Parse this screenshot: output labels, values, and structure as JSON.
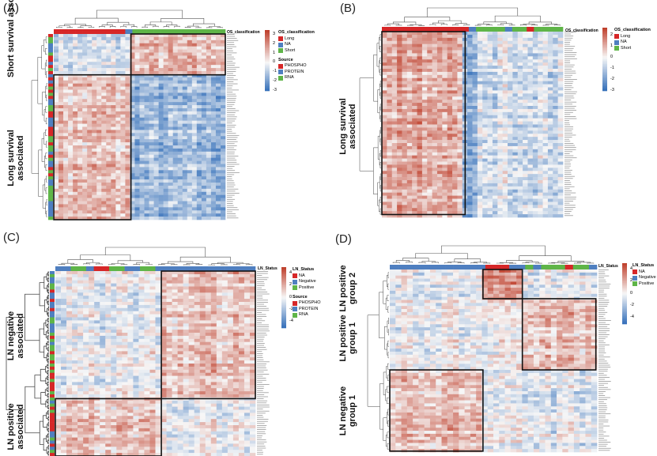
{
  "chart_data": [
    {
      "type": "heatmap",
      "panel_label": "(A)",
      "row_group_labels": [
        "Short survival associated",
        "Long survival associated"
      ],
      "column_annotation_title": "OS_classification",
      "colorbar_range": [
        -3,
        3.5
      ],
      "colorbar_ticks": [
        "3",
        "2",
        "1",
        "0",
        "-1",
        "-2",
        "-3"
      ],
      "legends": [
        {
          "title": "OS_classification",
          "items": [
            {
              "label": "Long",
              "color": "#d62728"
            },
            {
              "label": "NA",
              "color": "#4f7fc0"
            },
            {
              "label": "Short",
              "color": "#5fb548"
            }
          ]
        },
        {
          "title": "Source",
          "items": [
            {
              "label": "PHOSPHO",
              "color": "#d62728"
            },
            {
              "label": "PROTEIN",
              "color": "#4f7fc0"
            },
            {
              "label": "RNA",
              "color": "#5fb548"
            }
          ]
        }
      ]
    },
    {
      "type": "heatmap",
      "panel_label": "(B)",
      "row_group_labels": [
        "Long survival associated"
      ],
      "column_annotation_title": "OS_classification",
      "colorbar_range": [
        -3,
        2.7
      ],
      "colorbar_ticks": [
        "2",
        "1",
        "0",
        "-1",
        "-2",
        "-3"
      ],
      "legends": [
        {
          "title": "OS_classification",
          "items": [
            {
              "label": "Long",
              "color": "#d62728"
            },
            {
              "label": "NA",
              "color": "#4f7fc0"
            },
            {
              "label": "Short",
              "color": "#5fb548"
            }
          ]
        }
      ]
    },
    {
      "type": "heatmap",
      "panel_label": "(C)",
      "row_group_labels": [
        "LN negative associated",
        "LN positive associated"
      ],
      "column_annotation_title": "LN_Status",
      "colorbar_range": [
        -5,
        5
      ],
      "colorbar_ticks": [
        "4",
        "2",
        "0",
        "-2",
        "-4"
      ],
      "legends": [
        {
          "title": "LN_Status",
          "items": [
            {
              "label": "NA",
              "color": "#d62728"
            },
            {
              "label": "Negative",
              "color": "#4f7fc0"
            },
            {
              "label": "Positive",
              "color": "#5fb548"
            }
          ]
        },
        {
          "title": "Source",
          "items": [
            {
              "label": "PHOSPHO",
              "color": "#d62728"
            },
            {
              "label": "PROTEIN",
              "color": "#4f7fc0"
            },
            {
              "label": "RNA",
              "color": "#5fb548"
            }
          ]
        }
      ]
    },
    {
      "type": "heatmap",
      "panel_label": "(D)",
      "row_group_labels": [
        "LN positive group 2",
        "LN positive group 1",
        "LN negative group 1"
      ],
      "column_annotation_title": "LN_Status",
      "colorbar_range": [
        -5,
        5
      ],
      "colorbar_ticks": [
        "4",
        "2",
        "0",
        "-2",
        "-4"
      ],
      "legends": [
        {
          "title": "LN_Status",
          "items": [
            {
              "label": "NA",
              "color": "#d62728"
            },
            {
              "label": "Negative",
              "color": "#4f7fc0"
            },
            {
              "label": "Positive",
              "color": "#5fb548"
            }
          ]
        }
      ]
    }
  ]
}
